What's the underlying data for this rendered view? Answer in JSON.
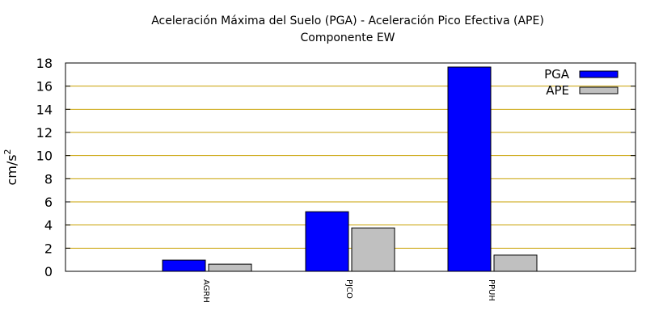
{
  "chart_data": {
    "type": "bar",
    "title": "Aceleración Máxima del Suelo (PGA) -  Aceleración Pico Efectiva (APE)",
    "subtitle": "Componente EW",
    "ylabel": "cm/s",
    "ylabel_sup": "2",
    "xlabel": "",
    "categories": [
      "AGRH",
      "PJCO",
      "PPUH"
    ],
    "series": [
      {
        "name": "PGA",
        "values": [
          0.97,
          5.15,
          17.65
        ],
        "color": "#0000ff"
      },
      {
        "name": "APE",
        "values": [
          0.62,
          3.75,
          1.4
        ],
        "color": "#c0c0c0"
      }
    ],
    "ylim": [
      0,
      18
    ],
    "yticks": [
      "0",
      "2",
      "4",
      "6",
      "8",
      "10",
      "12",
      "14",
      "16",
      "18"
    ],
    "grid": true,
    "grid_color": "#c8a000",
    "legend_position": "top-right"
  }
}
